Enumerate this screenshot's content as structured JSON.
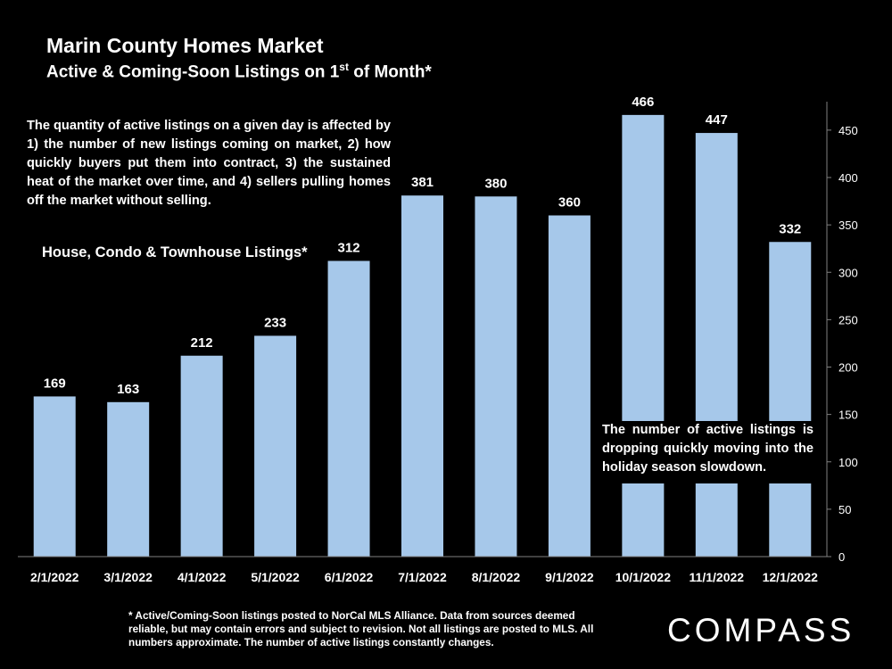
{
  "header": {
    "title": "Marin County Homes Market",
    "subtitle_main": "Active & Coming-Soon Listings on 1",
    "subtitle_sup": "st",
    "subtitle_tail": " of Month*"
  },
  "notes": {
    "intro": "The quantity of active listings on a given day is affected by 1) the number of new listings coming on market, 2) how quickly buyers put them into contract, 3) the sustained heat of the market over time, and 4) sellers pulling homes off the market without selling.",
    "series_label": "House, Condo & Townhouse Listings*",
    "holiday": "The number of active listings is dropping quickly moving into the holiday season slowdown."
  },
  "footnote": "* Active/Coming-Soon listings posted to NorCal MLS Alliance.  Data from sources deemed reliable, but may contain errors and subject to revision.  Not all listings are posted to MLS.  All numbers approximate. The number of active listings constantly changes.",
  "brand": {
    "logo_text": "COMPASS"
  },
  "colors": {
    "background": "#000000",
    "bar": "#a6c8ea",
    "text": "#ffffff",
    "axis": "#808080"
  },
  "chart_data": {
    "type": "bar",
    "title": "Marin County Homes Market",
    "subtitle": "Active & Coming-Soon Listings on 1st of Month*",
    "categories": [
      "2/1/2022",
      "3/1/2022",
      "4/1/2022",
      "5/1/2022",
      "6/1/2022",
      "7/1/2022",
      "8/1/2022",
      "9/1/2022",
      "10/1/2022",
      "11/1/2022",
      "12/1/2022"
    ],
    "series": [
      {
        "values": [
          169,
          163,
          212,
          233,
          312,
          381,
          380,
          360,
          466,
          447,
          332
        ]
      }
    ],
    "data_labels": true,
    "ylim": [
      0,
      480
    ],
    "y_ticks": [
      0,
      50,
      100,
      150,
      200,
      250,
      300,
      350,
      400,
      450
    ],
    "y_axis_side": "right",
    "grid": false,
    "legend": "none"
  }
}
